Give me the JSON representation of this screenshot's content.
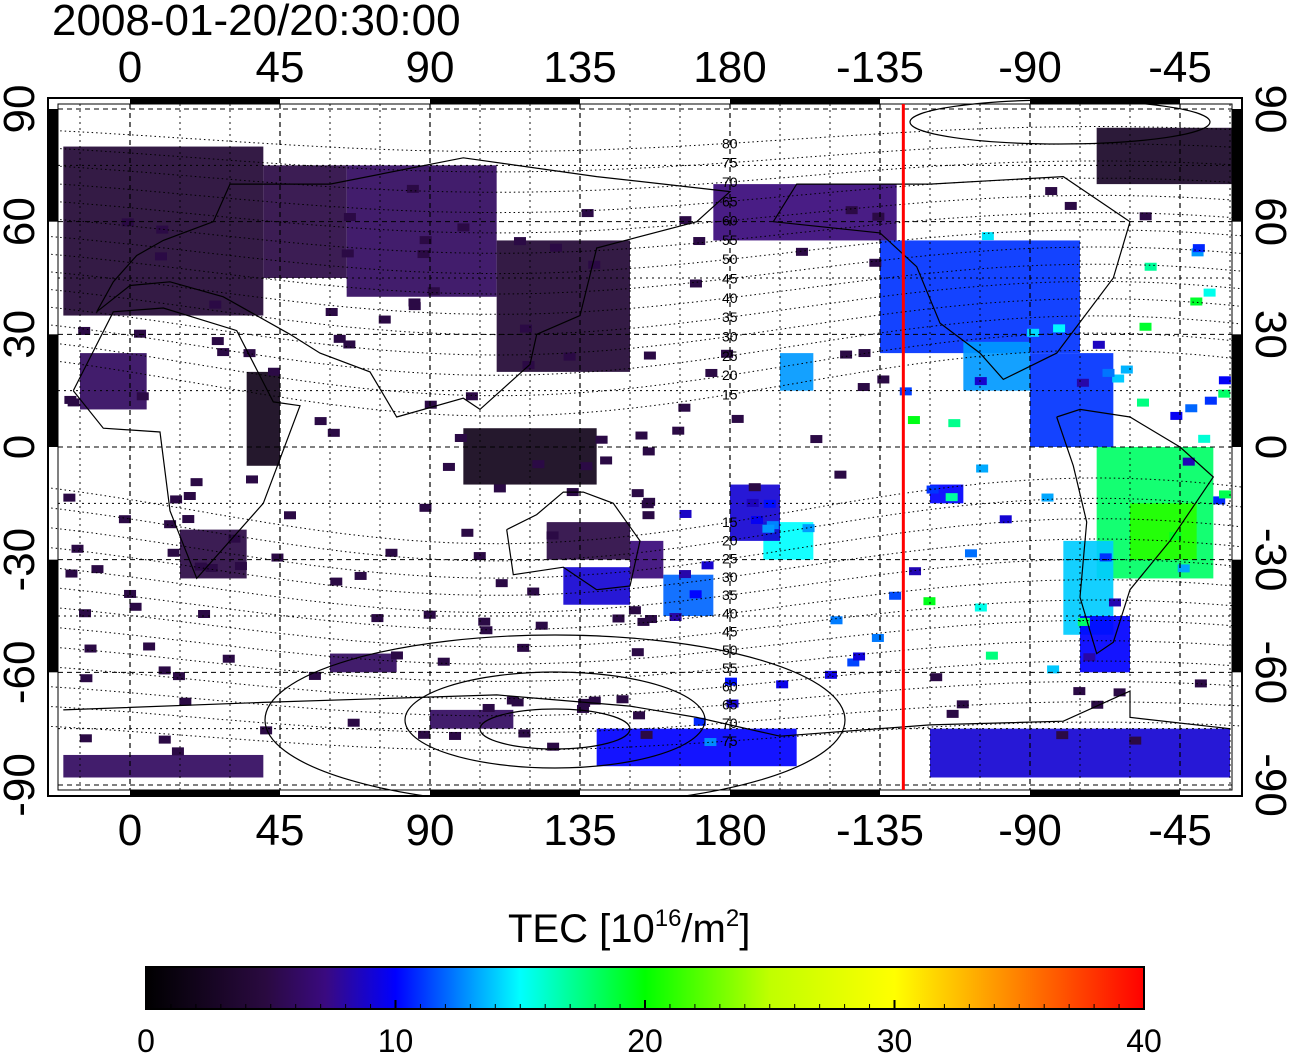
{
  "title": "2008-01-20/20:30:00",
  "colorbar": {
    "label_prefix": "TEC  [10",
    "label_exp": "16",
    "label_mid": "/m",
    "label_exp2": "2",
    "label_suffix": "]",
    "ticks": [
      "0",
      "10",
      "20",
      "30",
      "40"
    ],
    "range": [
      0,
      40
    ]
  },
  "map": {
    "projection": "equirectangular",
    "lon_center": 180,
    "top_lon_ticks": [
      "0",
      "45",
      "90",
      "135",
      "180",
      "-135",
      "-90",
      "-45"
    ],
    "bottom_lon_ticks": [
      "0",
      "45",
      "90",
      "135",
      "180",
      "-135",
      "-90",
      "-45"
    ],
    "left_lat_ticks": [
      "90",
      "60",
      "30",
      "0",
      "-30",
      "-60",
      "-90"
    ],
    "right_lat_ticks": [
      "90",
      "60",
      "30",
      "0",
      "-30",
      "-60",
      "-90"
    ],
    "terminator_lon": -128,
    "terminator_color": "#ff0000",
    "magnetic_lat_labels": [
      "80",
      "75",
      "70",
      "65",
      "60",
      "55",
      "50",
      "45",
      "40",
      "35",
      "30",
      "25",
      "20",
      "15",
      "15",
      "20",
      "25",
      "30",
      "35",
      "40",
      "45",
      "50",
      "55",
      "60",
      "65",
      "70",
      "75"
    ]
  }
}
